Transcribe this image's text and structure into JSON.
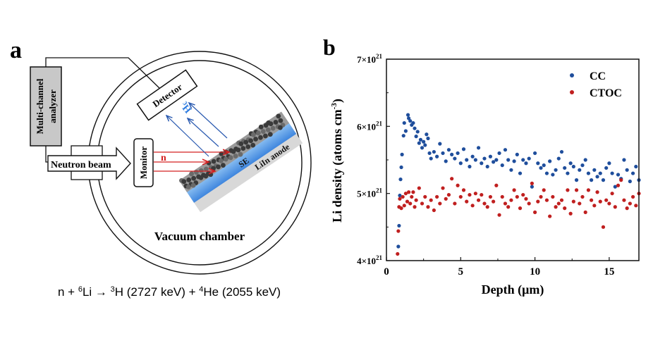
{
  "panel_a": {
    "label": "a",
    "analyzer_line1": "Multi-channel",
    "analyzer_line2": "analyzer",
    "neutron_beam": "Neutron beam",
    "monitor": "Monitor",
    "detector": "Detector",
    "neutron_symbol": "n",
    "triton_mass": "3",
    "triton_symbol": "H",
    "se_label": "SE",
    "anode_label": "LiIn anode",
    "chamber_label": "Vacuum chamber",
    "equation": {
      "p1": "n + ",
      "s1": "6",
      "p2": "Li → ",
      "s2": "3",
      "p3": "H (2727 keV) + ",
      "s3": "4",
      "p4": "He (2055 keV)"
    },
    "colors": {
      "neutron": "#d42020",
      "triton": "#2a5ab0",
      "electrolyte": "#4a90e2",
      "anode": "#d8d8d8",
      "analyzer": "#c8c8c8"
    }
  },
  "chart_data": {
    "panel_label": "b",
    "type": "scatter",
    "title": "",
    "xlabel": "Depth (μm)",
    "ylabel_main": "Li density (atoms cm",
    "ylabel_sup": "-3",
    "ylabel_end": ")",
    "xlim": [
      0,
      17
    ],
    "ylim": [
      4e+21,
      7e+21
    ],
    "x_ticks": [
      {
        "v": 0,
        "label": "0"
      },
      {
        "v": 5,
        "label": "5"
      },
      {
        "v": 10,
        "label": "10"
      },
      {
        "v": 15,
        "label": "15"
      }
    ],
    "y_ticks": [
      {
        "v": 4,
        "mant": "4×10",
        "exp": "21"
      },
      {
        "v": 5,
        "mant": "5×10",
        "exp": "21"
      },
      {
        "v": 6,
        "mant": "6×10",
        "exp": "21"
      },
      {
        "v": 7,
        "mant": "7×10",
        "exp": "21"
      }
    ],
    "y_unit": "×10^21 atoms cm^-3",
    "grid": false,
    "legend_position": "top-right",
    "series": [
      {
        "name": "CC",
        "color": "#1f4e9c",
        "points": [
          [
            0.8,
            4.21
          ],
          [
            0.85,
            4.52
          ],
          [
            0.9,
            4.97
          ],
          [
            0.95,
            5.21
          ],
          [
            1.0,
            5.39
          ],
          [
            1.05,
            5.58
          ],
          [
            1.15,
            5.86
          ],
          [
            1.2,
            6.05
          ],
          [
            1.3,
            5.93
          ],
          [
            1.45,
            6.17
          ],
          [
            1.5,
            6.12
          ],
          [
            1.6,
            6.08
          ],
          [
            1.7,
            6.02
          ],
          [
            1.8,
            6.05
          ],
          [
            1.9,
            5.97
          ],
          [
            2.0,
            5.85
          ],
          [
            2.1,
            5.92
          ],
          [
            2.2,
            5.75
          ],
          [
            2.3,
            5.8
          ],
          [
            2.4,
            5.68
          ],
          [
            2.5,
            5.77
          ],
          [
            2.6,
            5.72
          ],
          [
            2.7,
            5.88
          ],
          [
            2.8,
            5.82
          ],
          [
            2.9,
            5.6
          ],
          [
            3.0,
            5.52
          ],
          [
            3.2,
            5.62
          ],
          [
            3.4,
            5.55
          ],
          [
            3.6,
            5.74
          ],
          [
            3.8,
            5.6
          ],
          [
            4.0,
            5.48
          ],
          [
            4.2,
            5.65
          ],
          [
            4.4,
            5.58
          ],
          [
            4.6,
            5.52
          ],
          [
            4.8,
            5.6
          ],
          [
            5.0,
            5.45
          ],
          [
            5.2,
            5.66
          ],
          [
            5.4,
            5.5
          ],
          [
            5.6,
            5.4
          ],
          [
            5.8,
            5.55
          ],
          [
            6.0,
            5.5
          ],
          [
            6.2,
            5.68
          ],
          [
            6.4,
            5.45
          ],
          [
            6.6,
            5.52
          ],
          [
            6.8,
            5.4
          ],
          [
            7.0,
            5.55
          ],
          [
            7.2,
            5.47
          ],
          [
            7.4,
            5.5
          ],
          [
            7.6,
            5.6
          ],
          [
            7.8,
            5.42
          ],
          [
            8.0,
            5.65
          ],
          [
            8.2,
            5.5
          ],
          [
            8.4,
            5.35
          ],
          [
            8.6,
            5.48
          ],
          [
            8.8,
            5.58
          ],
          [
            9.0,
            5.3
          ],
          [
            9.2,
            5.5
          ],
          [
            9.4,
            5.45
          ],
          [
            9.6,
            5.52
          ],
          [
            9.8,
            5.1
          ],
          [
            10.0,
            5.6
          ],
          [
            10.2,
            5.45
          ],
          [
            10.4,
            5.38
          ],
          [
            10.6,
            5.42
          ],
          [
            10.8,
            5.3
          ],
          [
            11.0,
            5.48
          ],
          [
            11.2,
            5.28
          ],
          [
            11.4,
            5.35
          ],
          [
            11.6,
            5.52
          ],
          [
            11.8,
            5.62
          ],
          [
            12.0,
            5.38
          ],
          [
            12.2,
            5.3
          ],
          [
            12.4,
            5.45
          ],
          [
            12.6,
            5.4
          ],
          [
            12.8,
            5.2
          ],
          [
            13.0,
            5.35
          ],
          [
            13.2,
            5.42
          ],
          [
            13.4,
            5.5
          ],
          [
            13.6,
            5.3
          ],
          [
            13.8,
            5.2
          ],
          [
            14.0,
            5.35
          ],
          [
            14.2,
            5.25
          ],
          [
            14.4,
            5.3
          ],
          [
            14.6,
            5.2
          ],
          [
            14.8,
            5.38
          ],
          [
            15.0,
            5.45
          ],
          [
            15.2,
            5.3
          ],
          [
            15.4,
            5.1
          ],
          [
            15.6,
            5.28
          ],
          [
            15.8,
            5.22
          ],
          [
            16.0,
            5.5
          ],
          [
            16.2,
            5.35
          ],
          [
            16.4,
            5.18
          ],
          [
            16.6,
            5.3
          ],
          [
            16.8,
            5.4
          ],
          [
            17.0,
            5.2
          ]
        ]
      },
      {
        "name": "CTOC",
        "color": "#c01f1f",
        "points": [
          [
            0.75,
            4.1
          ],
          [
            0.8,
            4.44
          ],
          [
            0.85,
            4.8
          ],
          [
            0.9,
            4.92
          ],
          [
            1.0,
            4.78
          ],
          [
            1.1,
            4.95
          ],
          [
            1.2,
            4.82
          ],
          [
            1.3,
            5.0
          ],
          [
            1.4,
            4.88
          ],
          [
            1.5,
            5.02
          ],
          [
            1.6,
            4.85
          ],
          [
            1.7,
            4.95
          ],
          [
            1.8,
            5.02
          ],
          [
            1.9,
            4.8
          ],
          [
            2.0,
            4.9
          ],
          [
            2.2,
            5.08
          ],
          [
            2.4,
            4.85
          ],
          [
            2.6,
            4.95
          ],
          [
            2.8,
            4.8
          ],
          [
            3.0,
            4.9
          ],
          [
            3.2,
            4.75
          ],
          [
            3.4,
            4.95
          ],
          [
            3.6,
            4.85
          ],
          [
            3.8,
            5.08
          ],
          [
            4.0,
            4.92
          ],
          [
            4.2,
            4.98
          ],
          [
            4.4,
            5.22
          ],
          [
            4.6,
            4.85
          ],
          [
            4.8,
            5.12
          ],
          [
            5.0,
            4.95
          ],
          [
            5.2,
            5.05
          ],
          [
            5.4,
            4.88
          ],
          [
            5.6,
            4.98
          ],
          [
            5.8,
            4.82
          ],
          [
            6.0,
            5.0
          ],
          [
            6.2,
            4.9
          ],
          [
            6.4,
            4.98
          ],
          [
            6.6,
            4.85
          ],
          [
            6.8,
            4.8
          ],
          [
            7.0,
            4.95
          ],
          [
            7.2,
            4.88
          ],
          [
            7.4,
            5.12
          ],
          [
            7.6,
            4.68
          ],
          [
            7.8,
            4.95
          ],
          [
            8.0,
            4.85
          ],
          [
            8.2,
            4.8
          ],
          [
            8.4,
            4.9
          ],
          [
            8.6,
            5.05
          ],
          [
            8.8,
            4.95
          ],
          [
            9.0,
            4.78
          ],
          [
            9.2,
            4.98
          ],
          [
            9.4,
            4.92
          ],
          [
            9.6,
            4.85
          ],
          [
            9.8,
            5.15
          ],
          [
            10.0,
            4.72
          ],
          [
            10.2,
            4.88
          ],
          [
            10.4,
            4.95
          ],
          [
            10.6,
            5.05
          ],
          [
            10.8,
            4.9
          ],
          [
            11.0,
            4.66
          ],
          [
            11.2,
            4.95
          ],
          [
            11.4,
            4.8
          ],
          [
            11.6,
            4.85
          ],
          [
            11.8,
            4.9
          ],
          [
            12.0,
            4.78
          ],
          [
            12.2,
            5.05
          ],
          [
            12.4,
            4.7
          ],
          [
            12.6,
            4.88
          ],
          [
            12.8,
            5.05
          ],
          [
            13.0,
            4.85
          ],
          [
            13.2,
            4.95
          ],
          [
            13.4,
            4.72
          ],
          [
            13.6,
            5.05
          ],
          [
            13.8,
            4.9
          ],
          [
            14.0,
            4.82
          ],
          [
            14.2,
            5.02
          ],
          [
            14.4,
            4.88
          ],
          [
            14.6,
            4.5
          ],
          [
            14.8,
            4.9
          ],
          [
            15.0,
            4.85
          ],
          [
            15.2,
            5.0
          ],
          [
            15.4,
            4.8
          ],
          [
            15.6,
            5.12
          ],
          [
            15.8,
            5.2
          ],
          [
            16.0,
            4.9
          ],
          [
            16.2,
            4.78
          ],
          [
            16.4,
            4.85
          ],
          [
            16.6,
            4.95
          ],
          [
            16.8,
            4.82
          ],
          [
            17.0,
            5.0
          ]
        ]
      }
    ]
  }
}
